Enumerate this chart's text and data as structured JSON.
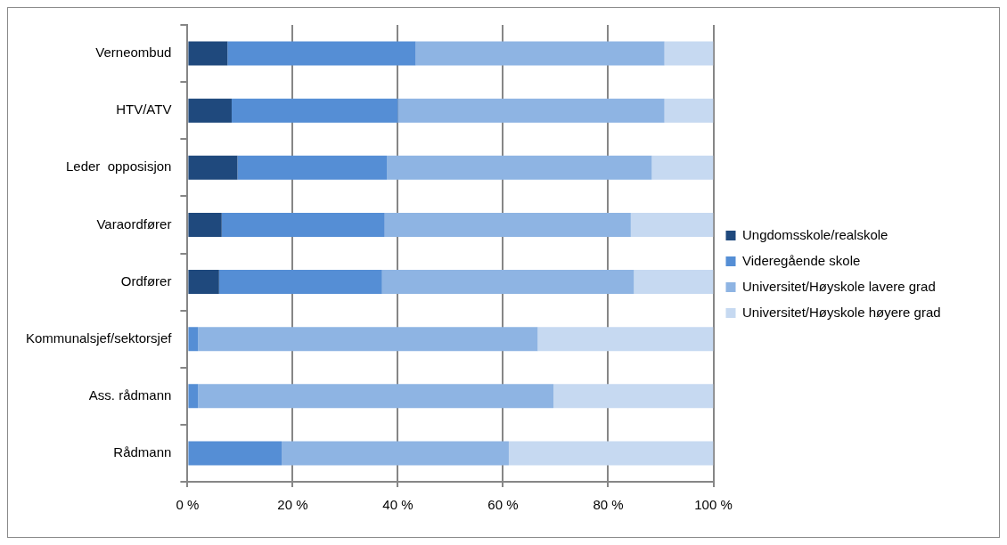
{
  "chart_data": {
    "type": "bar",
    "orientation": "horizontal",
    "stacked": true,
    "categories": [
      "Verneombud",
      "HTV/ATV",
      "Leder  opposisjon",
      "Varaordfører",
      "Ordfører",
      "Kommunalsjef/sektorsjef",
      "Ass. rådmann",
      "Rådmann"
    ],
    "series": [
      {
        "name": "Ungdomsskole/realskole",
        "color": "#1f497d",
        "values": [
          7.6,
          8.4,
          9.5,
          6.5,
          6.0,
          0,
          0,
          0
        ]
      },
      {
        "name": "Videregående skole",
        "color": "#558ed5",
        "values": [
          35.8,
          31.6,
          28.4,
          31.0,
          31.0,
          2.0,
          2.0,
          17.9
        ]
      },
      {
        "name": "Universitet/Høyskole lavere grad",
        "color": "#8eb4e3",
        "values": [
          47.3,
          50.7,
          50.4,
          46.8,
          47.9,
          64.6,
          67.6,
          43.2
        ]
      },
      {
        "name": "Universitet/Høyskole høyere grad",
        "color": "#c6d9f1",
        "values": [
          9.3,
          9.3,
          11.7,
          15.7,
          15.1,
          33.4,
          30.4,
          38.9
        ]
      }
    ],
    "xlim": [
      0,
      100
    ],
    "xticks": [
      {
        "value": 0,
        "label": "0 %"
      },
      {
        "value": 20,
        "label": "20 %"
      },
      {
        "value": 40,
        "label": "40 %"
      },
      {
        "value": 60,
        "label": "60 %"
      },
      {
        "value": 80,
        "label": "80 %"
      },
      {
        "value": 100,
        "label": "100 %"
      }
    ],
    "grid": "x",
    "legend": "right"
  }
}
